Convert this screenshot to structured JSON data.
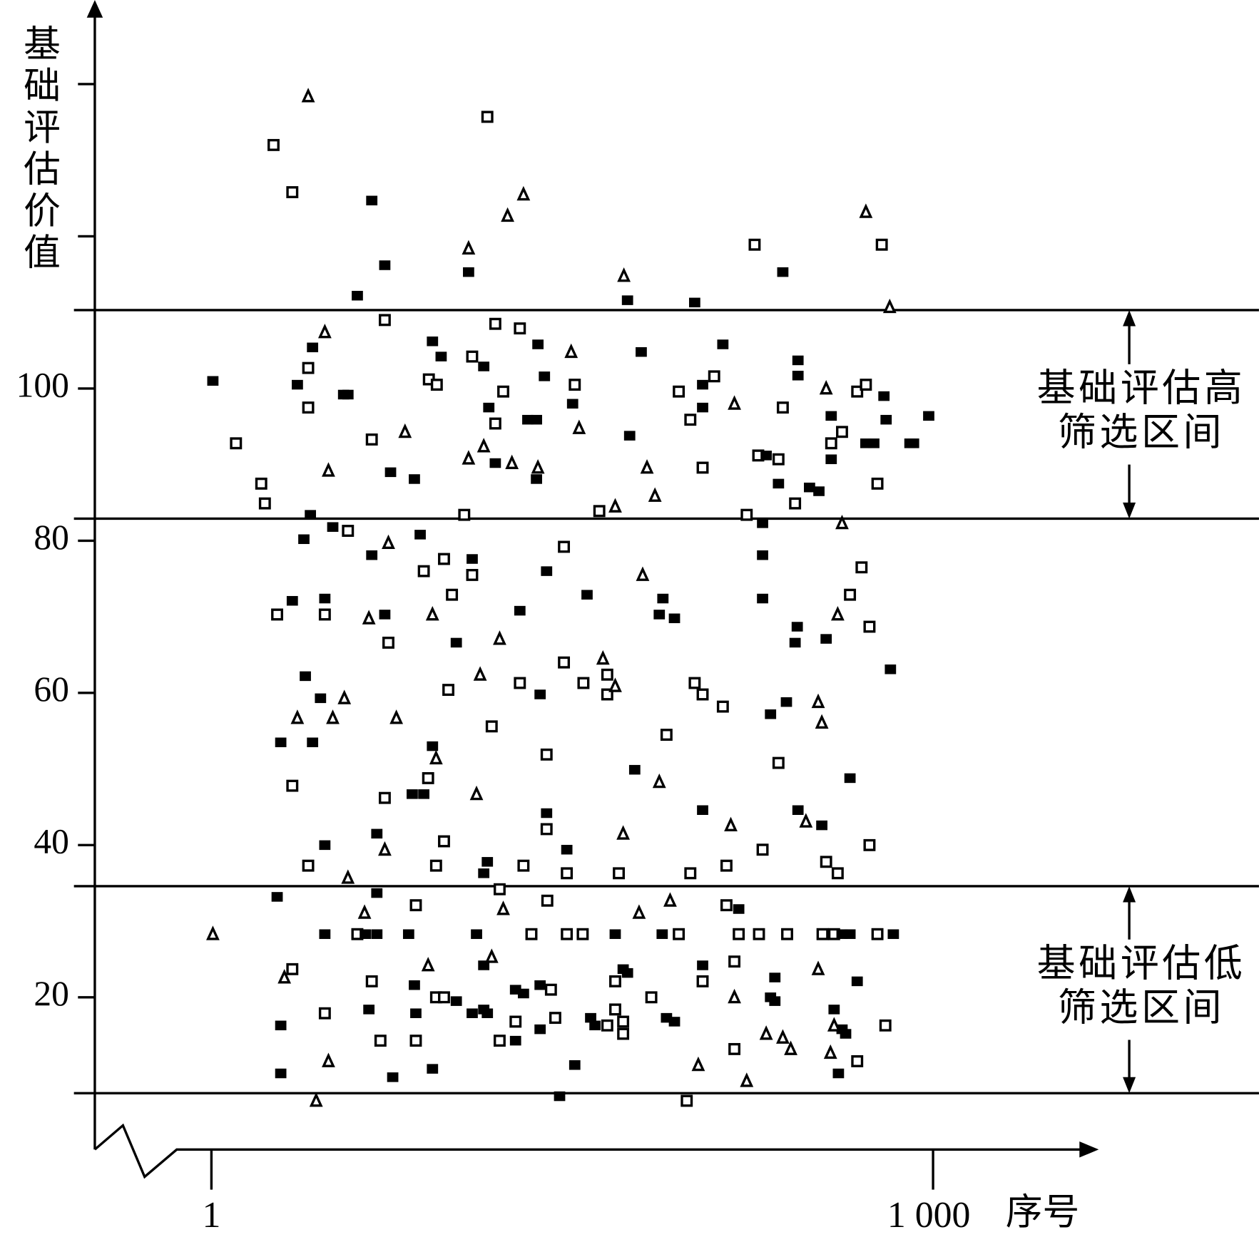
{
  "chart_data": {
    "type": "scatter",
    "ylabel": "基础评估价值",
    "xlabel": "序号",
    "xlim": [
      -47,
      1226
    ],
    "ylim": [
      0,
      150
    ],
    "xticks": [
      {
        "value": 1,
        "label": "1"
      },
      {
        "value": 1000,
        "label": "1 000"
      }
    ],
    "yticks": [
      20,
      40,
      60,
      80,
      100
    ],
    "yminor": [
      120,
      140
    ],
    "hlines": [
      110.3,
      82.9,
      34.6,
      7.4
    ],
    "bands": [
      {
        "from": 110.3,
        "to": 82.9,
        "label": [
          "基础评估高",
          "筛选区间"
        ]
      },
      {
        "from": 34.6,
        "to": 7.4,
        "label": [
          "基础评估低",
          "筛选区间"
        ]
      }
    ],
    "color": "#000000",
    "series": [
      {
        "marker": "square-open",
        "x": [
          87,
          113,
          383,
          241,
          753,
          929,
          35,
          70,
          75,
          135,
          135,
          223,
          302,
          313,
          362,
          394,
          428,
          405,
          394,
          351,
          504,
          538,
          648,
          664,
          697,
          681,
          758,
          786,
          792,
          809,
          859,
          874,
          895,
          907,
          923,
          742,
          190,
          323,
          295,
          362,
          489,
          901,
          885,
          912,
          92,
          158,
          246,
          334,
          329,
          428,
          489,
          516,
          549,
          549,
          670,
          681,
          709,
          113,
          389,
          301,
          241,
          465,
          631,
          786,
          465,
          323,
          764,
          912,
          135,
          312,
          433,
          493,
          565,
          664,
          714,
          852,
          868,
          400,
          284,
          466,
          714,
          203,
          444,
          493,
          515,
          648,
          731,
          759,
          798,
          847,
          863,
          923,
          113,
          223,
          312,
          323,
          471,
          560,
          610,
          681,
          725,
          158,
          235,
          284,
          400,
          422,
          477,
          549,
          560,
          571,
          571,
          725,
          934,
          895,
          659
        ],
        "values": [
          132,
          125.8,
          135.7,
          109,
          118.9,
          118.9,
          92.8,
          87.5,
          84.9,
          97.5,
          102.7,
          93.3,
          101.2,
          100.5,
          104.2,
          108.5,
          107.9,
          99.6,
          95.4,
          83.4,
          100.5,
          83.9,
          99.6,
          95.9,
          101.6,
          89.6,
          91.2,
          90.7,
          97.5,
          84.9,
          92.8,
          94.3,
          99.6,
          100.5,
          87.5,
          83.4,
          81.3,
          77.6,
          76,
          75.5,
          79.2,
          76.5,
          72.9,
          68.7,
          70.3,
          70.3,
          66.6,
          72.9,
          60.4,
          61.3,
          64,
          61.3,
          62.4,
          59.8,
          61.3,
          59.8,
          58.2,
          47.8,
          55.6,
          48.8,
          46.2,
          51.9,
          54.5,
          50.8,
          42.1,
          40.5,
          39.4,
          40,
          37.3,
          37.3,
          37.3,
          36.3,
          36.3,
          36.3,
          37.3,
          37.8,
          36.3,
          34.2,
          32.1,
          32.7,
          32.1,
          28.3,
          28.3,
          28.3,
          28.3,
          28.3,
          28.3,
          28.3,
          28.3,
          28.3,
          28.3,
          28.3,
          23.7,
          22.1,
          20,
          20,
          21,
          22.1,
          20,
          22.1,
          24.7,
          17.9,
          14.3,
          14.3,
          14.3,
          16.8,
          17.3,
          16.3,
          18.4,
          16.8,
          15.2,
          13.2,
          16.3,
          11.6,
          6.4
        ]
      },
      {
        "marker": "square-filled",
        "x": [
          223,
          357,
          241,
          203,
          577,
          670,
          792,
          3,
          120,
          141,
          184,
          190,
          138,
          249,
          282,
          307,
          319,
          378,
          385,
          394,
          439,
          451,
          453,
          462,
          451,
          501,
          580,
          596,
          681,
          681,
          709,
          769,
          786,
          813,
          813,
          829,
          842,
          859,
          859,
          932,
          907,
          918,
          935,
          968,
          973,
          994,
          764,
          129,
          169,
          223,
          290,
          362,
          465,
          521,
          626,
          764,
          764,
          812,
          809,
          852,
          113,
          158,
          241,
          340,
          428,
          621,
          642,
          941,
          131,
          152,
          456,
          775,
          797,
          97,
          141,
          307,
          279,
          295,
          587,
          885,
          681,
          813,
          846,
          465,
          230,
          158,
          493,
          383,
          378,
          92,
          230,
          731,
          158,
          214,
          230,
          274,
          368,
          560,
          625,
          874,
          885,
          945,
          282,
          340,
          378,
          422,
          433,
          456,
          571,
          577,
          681,
          775,
          781,
          781,
          895,
          97,
          219,
          284,
          362,
          378,
          383,
          422,
          456,
          526,
          532,
          631,
          642,
          863,
          874,
          879,
          97,
          252,
          307,
          504,
          869,
          483
        ],
        "values": [
          124.7,
          115.3,
          116.2,
          112.2,
          111.6,
          111.3,
          115.3,
          101,
          100.5,
          105.4,
          99.2,
          99.2,
          83.4,
          89,
          88.1,
          106.2,
          104.2,
          102.9,
          97.5,
          90.2,
          95.9,
          95.9,
          105.8,
          101.6,
          88.1,
          98,
          93.8,
          104.8,
          97.5,
          100.5,
          105.8,
          91.2,
          87.5,
          103.7,
          101.7,
          87,
          86.5,
          96.4,
          90.7,
          99,
          92.8,
          92.8,
          95.9,
          92.8,
          92.8,
          96.4,
          82.3,
          80.2,
          81.8,
          78.1,
          80.8,
          77.6,
          76,
          72.9,
          72.4,
          78.1,
          72.4,
          68.7,
          66.6,
          67.1,
          72.1,
          72.4,
          70.3,
          66.6,
          70.8,
          70.3,
          69.8,
          63.1,
          62.2,
          59.3,
          59.8,
          57.2,
          58.8,
          53.5,
          53.5,
          53,
          46.7,
          46.7,
          49.9,
          48.8,
          44.6,
          44.6,
          42.6,
          44.2,
          41.5,
          40,
          39.4,
          37.8,
          36.3,
          33.2,
          33.7,
          31.6,
          28.3,
          28.3,
          28.3,
          28.3,
          28.3,
          28.3,
          28.3,
          28.3,
          28.3,
          28.3,
          21.6,
          19.5,
          24.2,
          21,
          20.5,
          21.6,
          23.7,
          23.2,
          24.2,
          20,
          19.5,
          22.6,
          22.1,
          16.3,
          18.4,
          17.9,
          17.9,
          18.4,
          17.9,
          14.3,
          15.8,
          17.3,
          16.3,
          17.3,
          16.8,
          18.4,
          15.8,
          15.2,
          10,
          9.5,
          10.6,
          11.1,
          10,
          7
        ]
      },
      {
        "marker": "triangle-open",
        "x": [
          135,
          433,
          411,
          357,
          572,
          907,
          940,
          158,
          163,
          269,
          357,
          378,
          417,
          453,
          499,
          510,
          560,
          604,
          615,
          725,
          852,
          246,
          598,
          874,
          868,
          219,
          307,
          400,
          185,
          120,
          169,
          373,
          543,
          560,
          841,
          846,
          257,
          312,
          368,
          621,
          720,
          824,
          241,
          571,
          190,
          213,
          405,
          593,
          636,
          3,
          102,
          301,
          389,
          725,
          841,
          769,
          792,
          803,
          863,
          163,
          675,
          742,
          858,
          146
        ],
        "values": [
          138.4,
          125.5,
          122.7,
          118.4,
          114.8,
          123.2,
          110.7,
          107.4,
          89.2,
          94.3,
          90.8,
          92.4,
          90.2,
          89.6,
          104.8,
          94.8,
          84.5,
          89.6,
          85.9,
          98,
          100,
          79.7,
          75.5,
          82.3,
          70.3,
          69.8,
          70.3,
          67.1,
          59.3,
          56.7,
          56.7,
          62.4,
          64.5,
          60.9,
          58.8,
          56.1,
          56.7,
          51.4,
          46.7,
          48.3,
          42.6,
          43.1,
          39.4,
          41.5,
          35.7,
          31.1,
          31.6,
          31.1,
          32.7,
          28.3,
          22.6,
          24.2,
          25.3,
          20,
          23.7,
          15.2,
          14.7,
          13.2,
          16.3,
          11.6,
          11.1,
          9,
          12.7,
          6.4
        ]
      }
    ]
  }
}
